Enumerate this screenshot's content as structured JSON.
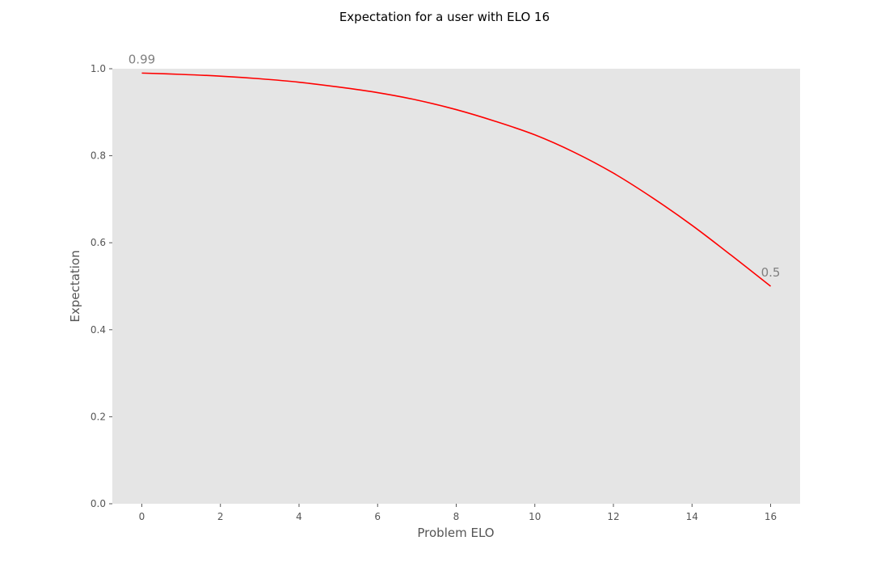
{
  "chart_data": {
    "type": "line",
    "title": "Expectation for a user with ELO 16",
    "xlabel": "Problem ELO",
    "ylabel": "Expectation",
    "xlim": [
      -0.75,
      16.75
    ],
    "ylim": [
      0.0,
      1.0
    ],
    "x_ticks": [
      "0",
      "2",
      "4",
      "6",
      "8",
      "10",
      "12",
      "14",
      "16"
    ],
    "y_ticks": [
      "0.0",
      "0.2",
      "0.4",
      "0.6",
      "0.8",
      "1.0"
    ],
    "grid": false,
    "background": "#e5e5e5",
    "series": [
      {
        "color": "#ff0000",
        "x": [
          0,
          1,
          2,
          3,
          4,
          5,
          6,
          7,
          8,
          9,
          10,
          11,
          12,
          13,
          14,
          15,
          16
        ],
        "y": [
          0.99,
          0.987,
          0.983,
          0.977,
          0.969,
          0.958,
          0.945,
          0.928,
          0.906,
          0.879,
          0.848,
          0.808,
          0.76,
          0.703,
          0.64,
          0.571,
          0.5
        ]
      }
    ],
    "annotations": [
      {
        "x": 0,
        "y": 0.99,
        "text": "0.99"
      },
      {
        "x": 16,
        "y": 0.5,
        "text": "0.5"
      }
    ]
  }
}
